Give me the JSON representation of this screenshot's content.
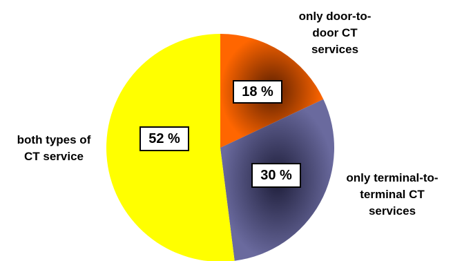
{
  "chart_data": {
    "type": "pie",
    "slices": [
      {
        "label": "only door-to-door CT services",
        "value": 18,
        "value_label": "18 %",
        "color": "#FF6600"
      },
      {
        "label": "only terminal-to-terminal CT services",
        "value": 30,
        "value_label": "30 %",
        "color": "#66669A"
      },
      {
        "label": "both types of CT service",
        "value": 52,
        "value_label": "52 %",
        "color": "#FFFF00"
      }
    ]
  },
  "labels": {
    "door_line1": "only door-to-",
    "door_line2": "door CT",
    "door_line3": "services",
    "terminal_line1": "only terminal-to-",
    "terminal_line2": "terminal CT",
    "terminal_line3": "services",
    "both_line1": "both types of",
    "both_line2": "CT service"
  }
}
